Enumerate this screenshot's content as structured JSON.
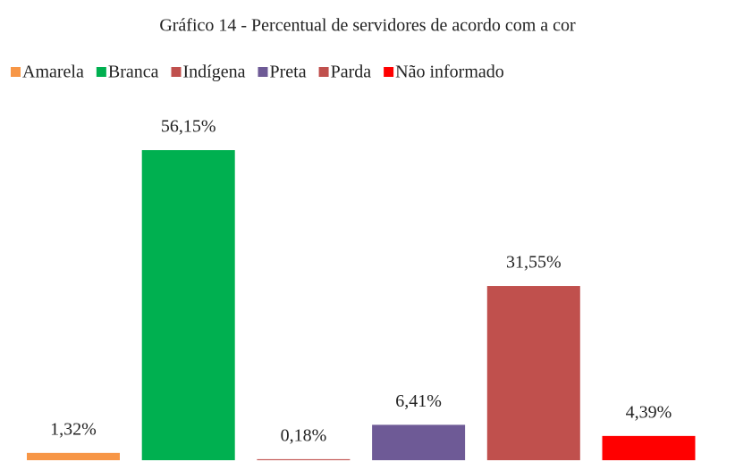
{
  "chart_data": {
    "type": "bar",
    "title": "Gráfico 14 - Percentual de servidores de acordo com a cor",
    "series": [
      {
        "name": "Amarela",
        "color": "#f79646",
        "values": [
          1.32
        ],
        "value_labels": [
          "1,32%"
        ]
      },
      {
        "name": "Branca",
        "color": "#00b050",
        "values": [
          56.15
        ],
        "value_labels": [
          "56,15%"
        ]
      },
      {
        "name": "Indígena",
        "color": "#c0504d",
        "values": [
          0.18
        ],
        "value_labels": [
          "0,18%"
        ]
      },
      {
        "name": "Preta",
        "color": "#6e5a96",
        "values": [
          6.41
        ],
        "value_labels": [
          "6,41%"
        ]
      },
      {
        "name": "Parda",
        "color": "#c0504d",
        "values": [
          31.55
        ],
        "value_labels": [
          "31,55%"
        ]
      },
      {
        "name": "Não informado",
        "color": "#ff0000",
        "values": [
          4.39
        ],
        "value_labels": [
          "4,39%"
        ]
      }
    ],
    "legend": "top"
  }
}
